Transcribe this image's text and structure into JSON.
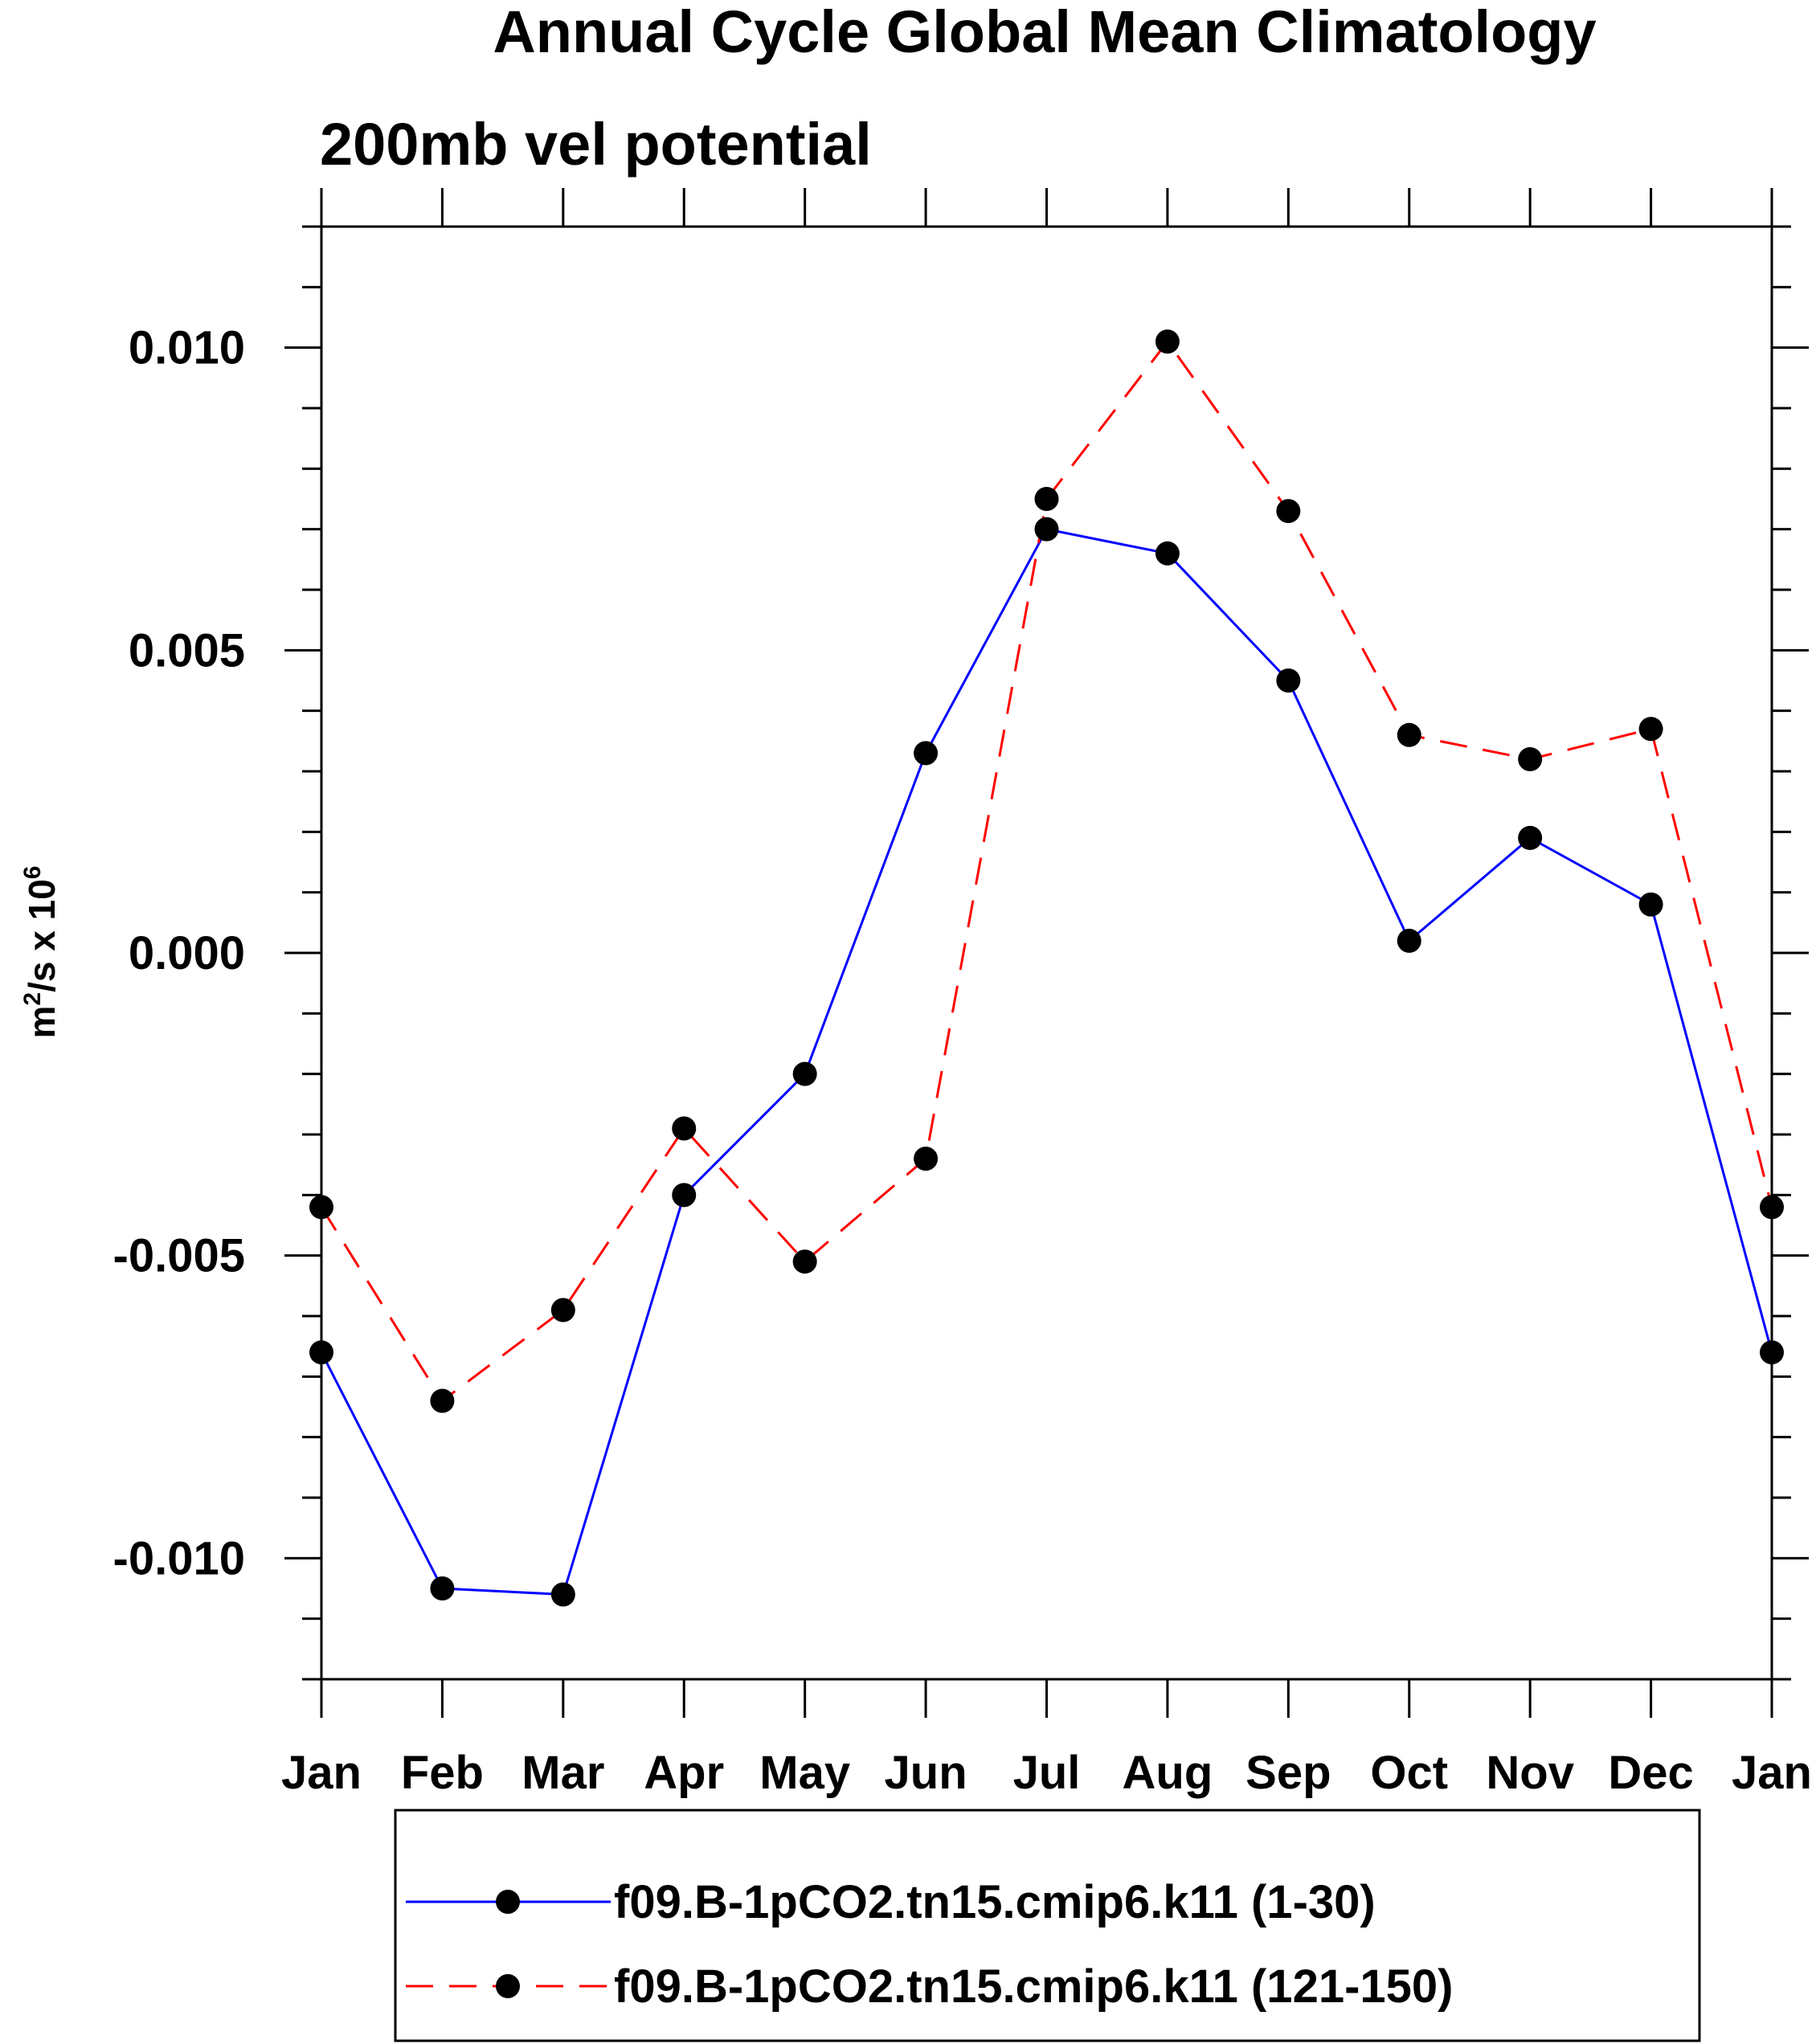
{
  "chart_data": {
    "type": "line",
    "title": "Annual Cycle Global Mean Climatology",
    "subtitle": "200mb vel potential",
    "ylabel": {
      "base": "m",
      "exp1": "2",
      "mid": "/s x 10",
      "exp2": "6"
    },
    "xlabel": "",
    "categories": [
      "Jan",
      "Feb",
      "Mar",
      "Apr",
      "May",
      "Jun",
      "Jul",
      "Aug",
      "Sep",
      "Oct",
      "Nov",
      "Dec",
      "Jan"
    ],
    "ylim": [
      -0.012,
      0.012
    ],
    "yticks": [
      -0.01,
      -0.005,
      0.0,
      0.005,
      0.01
    ],
    "ytick_labels": [
      "-0.010",
      "-0.005",
      "0.000",
      "0.005",
      "0.010"
    ],
    "series": [
      {
        "name": "f09.B-1pCO2.tn15.cmip6.k11 (1-30)",
        "color": "#0000ff",
        "dash": "solid",
        "values": [
          -0.0066,
          -0.0105,
          -0.0106,
          -0.004,
          -0.002,
          0.0033,
          0.007,
          0.0066,
          0.0045,
          0.0002,
          0.0019,
          0.0008,
          -0.0066
        ]
      },
      {
        "name": "f09.B-1pCO2.tn15.cmip6.k11 (121-150)",
        "color": "#ff0000",
        "dash": "dashed",
        "values": [
          -0.0042,
          -0.0074,
          -0.0059,
          -0.0029,
          -0.0051,
          -0.0034,
          0.0075,
          0.0101,
          0.0073,
          0.0036,
          0.0032,
          0.0037,
          -0.0042
        ]
      }
    ]
  }
}
